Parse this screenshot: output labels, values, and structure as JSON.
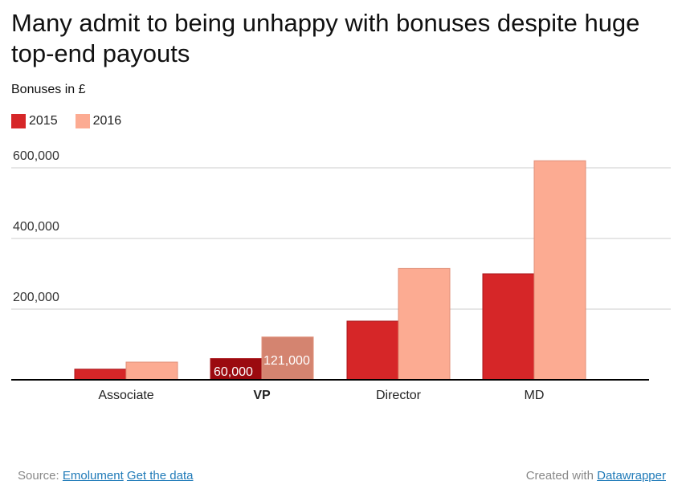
{
  "title": "Many admit to being unhappy with bonuses despite huge top-end payouts",
  "subtitle": "Bonuses in £",
  "colors": {
    "2015": "#d62628",
    "2016": "#fcab92",
    "highlight_2015": "#9b0a0f",
    "highlight_2016": "#d48470"
  },
  "footer": {
    "source_label": "Source:",
    "source_link": "Emolument",
    "data_link": "Get the data",
    "created_label": "Created with",
    "created_link": "Datawrapper"
  },
  "chart_data": {
    "type": "bar",
    "title": "Many admit to being unhappy with bonuses despite huge top-end payouts",
    "ylabel": "Bonuses in £",
    "categories": [
      "Associate",
      "VP",
      "Director",
      "MD"
    ],
    "highlighted_category": "VP",
    "series": [
      {
        "name": "2015",
        "values": [
          30000,
          60000,
          166000,
          300000
        ]
      },
      {
        "name": "2016",
        "values": [
          50000,
          121000,
          315000,
          620000
        ]
      }
    ],
    "data_labels": {
      "VP": [
        "60,000",
        "121,000"
      ]
    },
    "yticks": [
      200000,
      400000,
      600000
    ],
    "ytick_labels": [
      "200,000",
      "400,000",
      "600,000"
    ],
    "ylim": [
      0,
      600000
    ],
    "grid": true,
    "legend": "top-left"
  }
}
